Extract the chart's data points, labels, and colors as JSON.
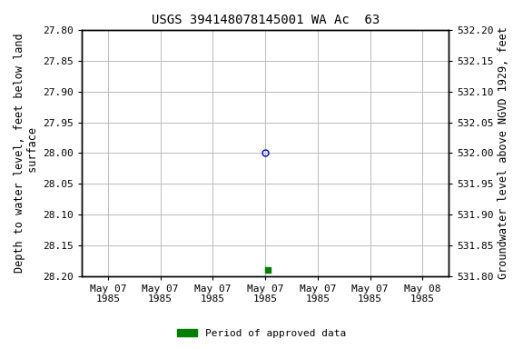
{
  "title": "USGS 394148078145001 WA Ac  63",
  "ylabel_left": "Depth to water level, feet below land\n surface",
  "ylabel_right": "Groundwater level above NGVD 1929, feet",
  "ylim_left": [
    27.8,
    28.2
  ],
  "ylim_right": [
    532.2,
    531.8
  ],
  "xlim_num": [
    -0.5,
    6.5
  ],
  "xtick_positions": [
    0,
    1,
    2,
    3,
    4,
    5,
    6
  ],
  "xtick_labels": [
    "May 07\n1985",
    "May 07\n1985",
    "May 07\n1985",
    "May 07\n1985",
    "May 07\n1985",
    "May 07\n1985",
    "May 08\n1985"
  ],
  "yticks_left": [
    27.8,
    27.85,
    27.9,
    27.95,
    28.0,
    28.05,
    28.1,
    28.15,
    28.2
  ],
  "yticks_right": [
    532.2,
    532.15,
    532.1,
    532.05,
    532.0,
    531.95,
    531.9,
    531.85,
    531.8
  ],
  "point_open_x": 3.0,
  "point_open_y": 28.0,
  "point_filled_x": 3.05,
  "point_filled_y": 28.19,
  "open_color": "#0000cc",
  "filled_color": "#008000",
  "legend_label": "Period of approved data",
  "legend_color": "#008000",
  "background_color": "white",
  "grid_color": "#bbbbbb",
  "font_color": "black",
  "title_fontsize": 10,
  "tick_fontsize": 8,
  "label_fontsize": 8.5
}
